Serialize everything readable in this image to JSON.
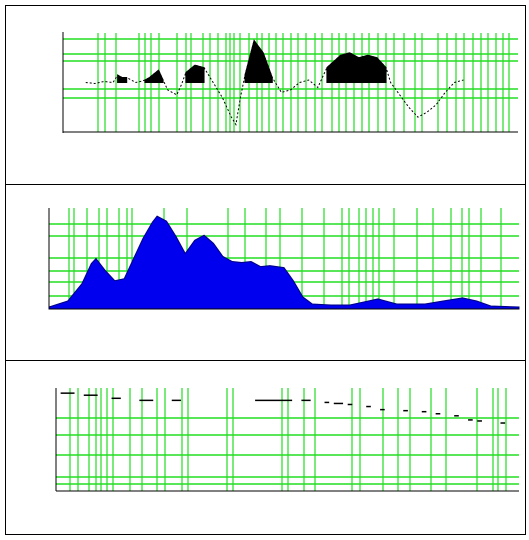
{
  "chart_data": [
    {
      "type": "line",
      "title": "",
      "xlabel": "",
      "ylabel": "",
      "ylim": [
        -1,
        1
      ],
      "xlim": [
        0,
        100
      ],
      "series": [
        {
          "points": [
            [
              5,
              0
            ],
            [
              7,
              -0.02
            ],
            [
              9,
              0.02
            ],
            [
              11,
              0
            ],
            [
              12,
              0.15
            ],
            [
              13,
              0.1
            ],
            [
              14,
              0.1
            ],
            [
              16,
              0
            ],
            [
              17,
              0.02
            ],
            [
              18,
              0.05
            ],
            [
              19,
              0.1
            ],
            [
              21,
              0.25
            ],
            [
              22,
              0.05
            ],
            [
              23,
              -0.15
            ],
            [
              25,
              -0.25
            ],
            [
              26,
              -0.05
            ],
            [
              27,
              0.2
            ],
            [
              29,
              0.35
            ],
            [
              31,
              0.3
            ],
            [
              33,
              0
            ],
            [
              35,
              -0.3
            ],
            [
              37,
              -0.7
            ],
            [
              38,
              -0.85
            ],
            [
              39,
              -0.3
            ],
            [
              40,
              0.15
            ],
            [
              42,
              0.85
            ],
            [
              44,
              0.6
            ],
            [
              46,
              0.1
            ],
            [
              48,
              -0.2
            ],
            [
              50,
              -0.15
            ],
            [
              52,
              0
            ],
            [
              54,
              0.05
            ],
            [
              56,
              -0.1
            ],
            [
              58,
              0.3
            ],
            [
              61,
              0.55
            ],
            [
              63,
              0.6
            ],
            [
              65,
              0.5
            ],
            [
              67,
              0.55
            ],
            [
              69,
              0.5
            ],
            [
              71,
              0.3
            ],
            [
              72,
              0
            ],
            [
              74,
              -0.25
            ],
            [
              76,
              -0.5
            ],
            [
              78,
              -0.7
            ],
            [
              80,
              -0.6
            ],
            [
              82,
              -0.45
            ],
            [
              84,
              -0.2
            ],
            [
              86,
              0
            ],
            [
              88,
              0.05
            ]
          ]
        }
      ]
    },
    {
      "type": "area",
      "title": "",
      "xlabel": "",
      "ylabel": "",
      "xlim": [
        0,
        100
      ],
      "ylim": [
        0,
        1
      ],
      "series": [
        {
          "points": [
            [
              0,
              0.02
            ],
            [
              4,
              0.08
            ],
            [
              7,
              0.25
            ],
            [
              9,
              0.45
            ],
            [
              10,
              0.5
            ],
            [
              12,
              0.38
            ],
            [
              14,
              0.28
            ],
            [
              16,
              0.3
            ],
            [
              18,
              0.5
            ],
            [
              20,
              0.7
            ],
            [
              22,
              0.86
            ],
            [
              23,
              0.92
            ],
            [
              25,
              0.87
            ],
            [
              27,
              0.72
            ],
            [
              29,
              0.55
            ],
            [
              31,
              0.68
            ],
            [
              33,
              0.73
            ],
            [
              35,
              0.65
            ],
            [
              37,
              0.52
            ],
            [
              39,
              0.47
            ],
            [
              41,
              0.46
            ],
            [
              43,
              0.47
            ],
            [
              45,
              0.42
            ],
            [
              47,
              0.43
            ],
            [
              50,
              0.41
            ],
            [
              52,
              0.28
            ],
            [
              54,
              0.12
            ],
            [
              56,
              0.05
            ],
            [
              60,
              0.04
            ],
            [
              64,
              0.04
            ],
            [
              66,
              0.06
            ],
            [
              70,
              0.1
            ],
            [
              74,
              0.05
            ],
            [
              80,
              0.05
            ],
            [
              84,
              0.08
            ],
            [
              88,
              0.11
            ],
            [
              91,
              0.08
            ],
            [
              94,
              0.03
            ],
            [
              100,
              0.02
            ]
          ]
        }
      ]
    },
    {
      "type": "scatter",
      "title": "",
      "xlabel": "",
      "ylabel": "",
      "xlim": [
        0,
        100
      ],
      "ylim": [
        0,
        1
      ],
      "series": [
        {
          "segments": [
            [
              1,
              4,
              0.95
            ],
            [
              6,
              9,
              0.93
            ],
            [
              12,
              14,
              0.9
            ],
            [
              18,
              21,
              0.88
            ],
            [
              25,
              27,
              0.88
            ],
            [
              43,
              51,
              0.88
            ],
            [
              53,
              55,
              0.88
            ],
            [
              58,
              59,
              0.86
            ],
            [
              60,
              62,
              0.85
            ],
            [
              63,
              64,
              0.84
            ],
            [
              67,
              68,
              0.82
            ],
            [
              70,
              71,
              0.79
            ],
            [
              75,
              76,
              0.78
            ],
            [
              79,
              80,
              0.77
            ],
            [
              82,
              83,
              0.75
            ],
            [
              86,
              87,
              0.73
            ],
            [
              89,
              90,
              0.69
            ],
            [
              91,
              92,
              0.68
            ],
            [
              96,
              97,
              0.66
            ]
          ]
        }
      ]
    }
  ],
  "style": {
    "grid_color": "#22dd22",
    "area_color": "#0000ee",
    "area_outline": "#000080",
    "marker_color": "#000000"
  }
}
